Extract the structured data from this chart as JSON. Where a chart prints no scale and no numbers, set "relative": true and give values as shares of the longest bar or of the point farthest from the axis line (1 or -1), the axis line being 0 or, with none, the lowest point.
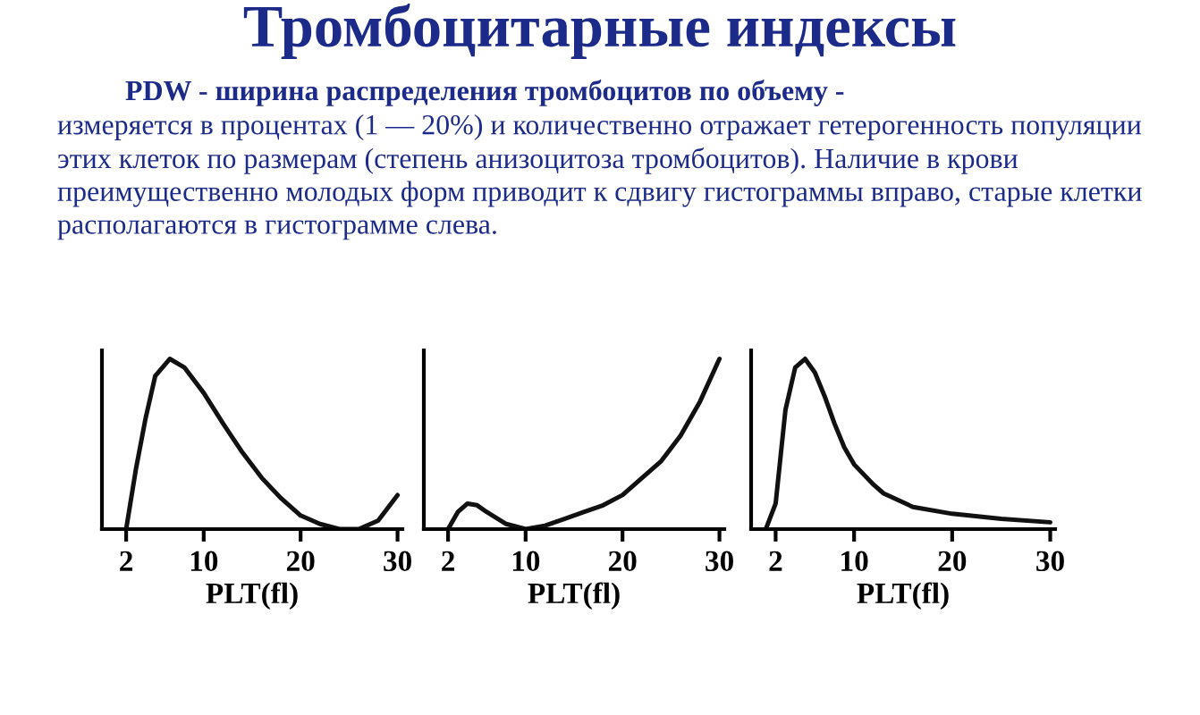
{
  "chart_data": [
    {
      "type": "line",
      "title": "Тромбоцитарные индексы",
      "subtitle": "PDW - ширина распределения тромбоцитов по объему -",
      "annotations": [
        "измеряется в процентах (1 — 20%) и количественно отражает гетерогенность популяции этих клеток по размерам (степень анизоцитоза тромбоцитов). Наличие в крови преимущественно молодых форм приводит к сдвигу гистограммы вправо, старые клетки располагаются в гистограмме слева."
      ],
      "xlabel": "PLT(fl)",
      "relative": true,
      "xlim": [
        -0.5,
        30.5
      ],
      "xticks": [
        2,
        10,
        20,
        30
      ],
      "tick_labels": "x",
      "series": [
        {
          "color": "#111111",
          "x": [
            2,
            3,
            4,
            5,
            6.5,
            8,
            10,
            12,
            14,
            16,
            18,
            20,
            22,
            24,
            26,
            28,
            30
          ],
          "values": [
            0,
            0.35,
            0.65,
            0.9,
            1.0,
            0.95,
            0.8,
            0.62,
            0.45,
            0.3,
            0.18,
            0.08,
            0.03,
            0.0,
            0.0,
            0.05,
            0.2
          ]
        }
      ]
    },
    {
      "type": "line",
      "xlabel": "PLT(fl)",
      "relative": true,
      "xlim": [
        -0.5,
        30.5
      ],
      "xticks": [
        2,
        10,
        20,
        30
      ],
      "tick_labels": "x",
      "series": [
        {
          "color": "#111111",
          "x": [
            2,
            3,
            4,
            5,
            6,
            8,
            10,
            12,
            14,
            16,
            18,
            20,
            22,
            24,
            26,
            28,
            30
          ],
          "values": [
            0,
            0.1,
            0.15,
            0.14,
            0.1,
            0.03,
            0,
            0.02,
            0.06,
            0.1,
            0.14,
            0.2,
            0.3,
            0.4,
            0.55,
            0.75,
            1.0
          ]
        }
      ]
    },
    {
      "type": "line",
      "xlabel": "PLT(fl)",
      "relative": true,
      "xlim": [
        -0.5,
        30.5
      ],
      "xticks": [
        2,
        10,
        20,
        30
      ],
      "tick_labels": "x",
      "series": [
        {
          "color": "#111111",
          "x": [
            1,
            2,
            3,
            4,
            5,
            6,
            7,
            8,
            9,
            10,
            12,
            13,
            16,
            20,
            25,
            30
          ],
          "values": [
            0,
            0.15,
            0.7,
            0.95,
            1.0,
            0.92,
            0.78,
            0.62,
            0.48,
            0.38,
            0.26,
            0.21,
            0.13,
            0.09,
            0.06,
            0.04
          ]
        }
      ]
    }
  ]
}
